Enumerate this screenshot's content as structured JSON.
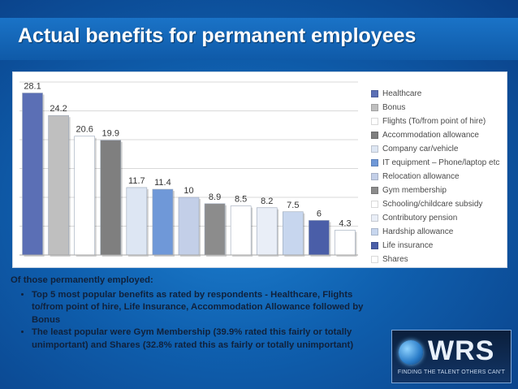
{
  "title": "Actual benefits for permanent employees",
  "chart_data": {
    "type": "bar",
    "title": "",
    "xlabel": "",
    "ylabel": "",
    "ylim": [
      0,
      30
    ],
    "grid": true,
    "legend_position": "right",
    "categories": [
      "Healthcare",
      "Bonus",
      "Flights (To/from point of hire)",
      "Accommodation allowance",
      "Company car/vehicle",
      "IT equipment – Phone/laptop etc",
      "Relocation allowance",
      "Gym membership",
      "Schooling/childcare subsidy",
      "Contributory pension",
      "Hardship allowance",
      "Life insurance",
      "Shares"
    ],
    "values": [
      28.1,
      24.2,
      20.6,
      19.9,
      11.7,
      11.4,
      10,
      8.9,
      8.5,
      8.2,
      7.5,
      6,
      4.3
    ],
    "data_labels": [
      "28.1",
      "24.2",
      "20.6",
      "19.9",
      "11.7",
      "11.4",
      "10",
      "8.9",
      "8.5",
      "8.2",
      "7.5",
      "6",
      "4.3"
    ],
    "colors": [
      "#5b6fb5",
      "#bfbfbf",
      "#ffffff",
      "#7f7f7f",
      "#dde6f3",
      "#6f98d8",
      "#c3cfe8",
      "#8c8c8c",
      "#ffffff",
      "#e9eef7",
      "#c7d6ee",
      "#4a5ea8",
      "#ffffff"
    ]
  },
  "notes": {
    "heading": "Of those  permanently employed:",
    "bullets": [
      "Top 5 most popular benefits as rated by respondents - Healthcare, Flights to/from point of hire, Life Insurance, Accommodation Allowance followed by Bonus",
      "The least popular were Gym Membership (39.9% rated this fairly or totally unimportant) and Shares (32.8% rated this as fairly or totally unimportant)"
    ]
  },
  "logo": {
    "text": "WRS",
    "tagline": "FINDING THE TALENT OTHERS CAN'T",
    "icon": "globe-icon"
  }
}
